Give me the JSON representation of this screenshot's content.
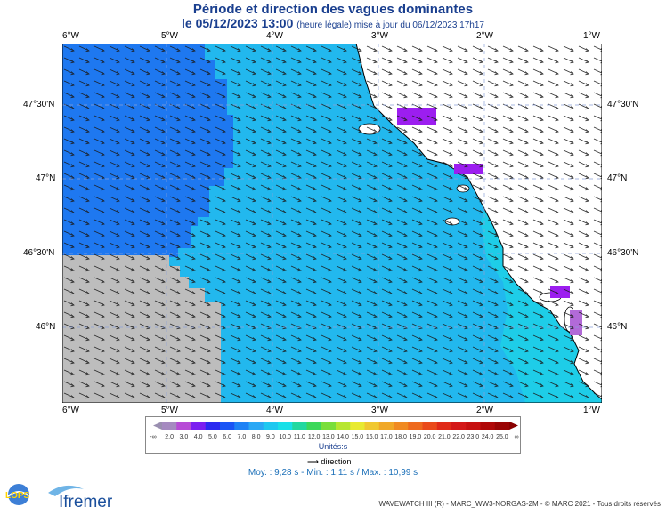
{
  "title_line1": "Période et direction des vagues dominantes",
  "title_line2_main": "le 05/12/2023 13:00",
  "title_line2_small": "(heure légale) mise à jour du 06/12/2023 17h17",
  "lon_ticks": [
    "6°W",
    "5°W",
    "4°W",
    "3°W",
    "2°W",
    "1°W"
  ],
  "lat_ticks": [
    "47°30'N",
    "47°N",
    "46°30'N",
    "46°N"
  ],
  "legend": {
    "labels": [
      "2,0",
      "3,0",
      "4,0",
      "5,0",
      "6,0",
      "7,0",
      "8,0",
      "9,0",
      "10,0",
      "11,0",
      "12,0",
      "13,0",
      "14,0",
      "15,0",
      "16,0",
      "17,0",
      "18,0",
      "19,0",
      "20,0",
      "21,0",
      "22,0",
      "23,0",
      "24,0",
      "25,0"
    ],
    "left_end": "-∞",
    "right_end": "∞",
    "colors": [
      "#a58ac0",
      "#b74bd6",
      "#7b1ef0",
      "#2b2af0",
      "#1a55f5",
      "#1e82f5",
      "#2aa8f5",
      "#1ec8f0",
      "#18e0e8",
      "#22d8a0",
      "#3cd85a",
      "#7ade3a",
      "#b7e630",
      "#e8ea30",
      "#f0c830",
      "#f0a828",
      "#f08a22",
      "#ee6a1e",
      "#ea4a1a",
      "#e02a18",
      "#d41818",
      "#c61010",
      "#b00808",
      "#9a0404"
    ],
    "unit": "Unités:s"
  },
  "direction_note": "direction",
  "stats": "Moy. : 9,28 s   -   Min. : 1,11 s / Max. : 10,99 s",
  "logos": {
    "lops": "LOPS",
    "ifremer": "Ifremer"
  },
  "credit": "WAVEWATCH III (R) - MARC_WW3-NORGAS-2M - © MARC 2021 - Tous droits réservés",
  "colors": {
    "deep_blue": "#1e78f0",
    "light_blue": "#22b8ee",
    "cyan": "#1ecde8",
    "purple": "#9c1ef0",
    "land": "#ffffff",
    "nodata": "#bdbdbd"
  }
}
